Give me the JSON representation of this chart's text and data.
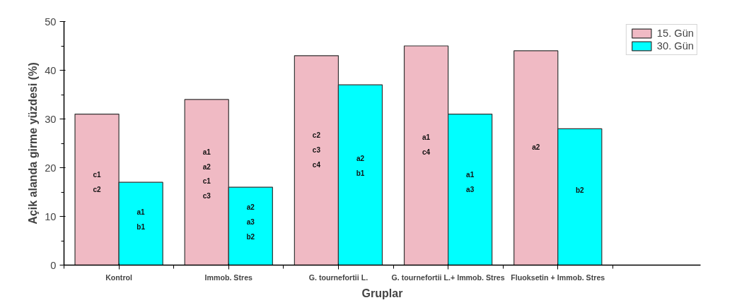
{
  "chart_data": {
    "type": "bar",
    "xlabel": "Gruplar",
    "ylabel": "Açik alanda girme yüzdesi (%)",
    "categories": [
      "Kontrol",
      "Immob. Stres",
      "G. tournefortii L.",
      "G. tournefortii L.+ Immob. Stres",
      "Fluoksetin + Immob. Stres"
    ],
    "series": [
      {
        "name": "15. Gün",
        "color": "#f0bac4",
        "values": [
          31,
          34,
          43,
          45,
          44
        ],
        "value_labels": [
          "c1\nc2",
          "a1\na2\nc1\nc3",
          "c2\nc3\nc4",
          "a1\nc4",
          "a2"
        ]
      },
      {
        "name": "30. Gün",
        "color": "#00ffff",
        "values": [
          17,
          16,
          37,
          31,
          28
        ],
        "value_labels": [
          "a1\nb1",
          "a2\na3\nb2",
          "a2\nb1",
          "a1\na3",
          "b2"
        ]
      }
    ],
    "ylim": [
      0,
      50
    ],
    "yticks": [
      0,
      10,
      20,
      30,
      40,
      50
    ],
    "grid": false,
    "legend": "top right"
  }
}
